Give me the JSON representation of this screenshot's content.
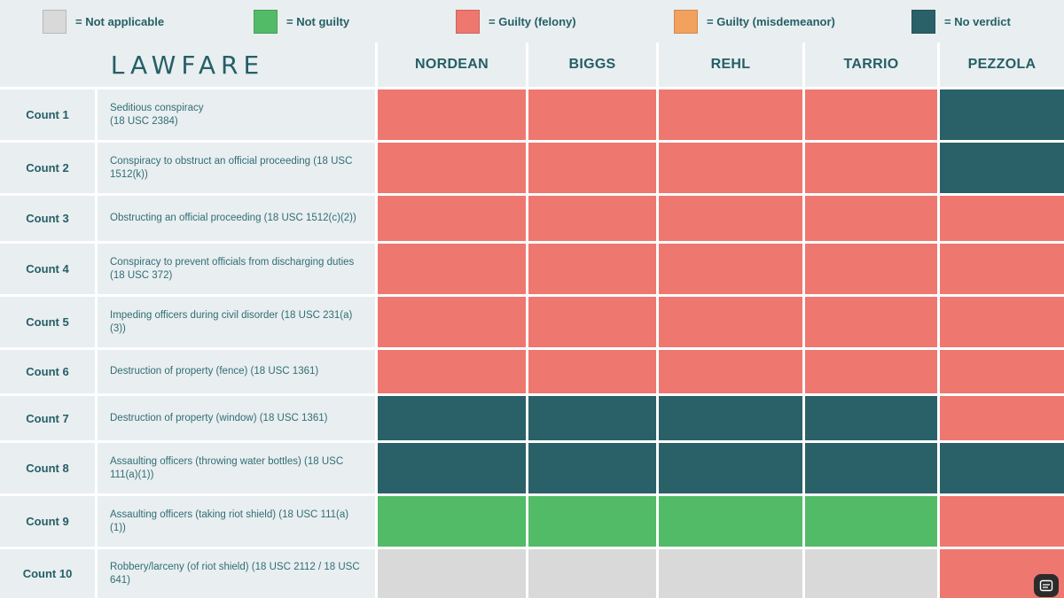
{
  "brand": "LAWFARE",
  "colors": {
    "not_applicable": "#d9d9d9",
    "not_guilty": "#52bb68",
    "guilty_felony": "#ee7770",
    "guilty_misdemeanor": "#f2a15f",
    "no_verdict": "#2a6168",
    "panel": "#e9eef0",
    "text": "#245f66"
  },
  "legend": [
    {
      "key": "not_applicable",
      "label": "= Not applicable"
    },
    {
      "key": "not_guilty",
      "label": "= Not guilty"
    },
    {
      "key": "guilty_felony",
      "label": "= Guilty (felony)"
    },
    {
      "key": "guilty_misdemeanor",
      "label": "= Guilty (misdemeanor)"
    },
    {
      "key": "no_verdict",
      "label": "= No verdict"
    }
  ],
  "chart_data": {
    "type": "table",
    "title": "LAWFARE",
    "columns": [
      "NORDEAN",
      "BIGGS",
      "REHL",
      "TARRIO",
      "PEZZOLA"
    ],
    "rows": [
      {
        "count": "Count 1",
        "charge": "Seditious conspiracy\n(18 USC 2384)",
        "verdicts": [
          "guilty_felony",
          "guilty_felony",
          "guilty_felony",
          "guilty_felony",
          "no_verdict"
        ]
      },
      {
        "count": "Count 2",
        "charge": "Conspiracy to obstruct an official proceeding (18 USC 1512(k))",
        "verdicts": [
          "guilty_felony",
          "guilty_felony",
          "guilty_felony",
          "guilty_felony",
          "no_verdict"
        ]
      },
      {
        "count": "Count 3",
        "charge": "Obstructing an official proceeding (18 USC 1512(c)(2))",
        "verdicts": [
          "guilty_felony",
          "guilty_felony",
          "guilty_felony",
          "guilty_felony",
          "guilty_felony"
        ]
      },
      {
        "count": "Count 4",
        "charge": "Conspiracy to prevent officials from discharging duties (18 USC 372)",
        "verdicts": [
          "guilty_felony",
          "guilty_felony",
          "guilty_felony",
          "guilty_felony",
          "guilty_felony"
        ]
      },
      {
        "count": "Count 5",
        "charge": "Impeding officers during civil disorder (18 USC 231(a)(3))",
        "verdicts": [
          "guilty_felony",
          "guilty_felony",
          "guilty_felony",
          "guilty_felony",
          "guilty_felony"
        ]
      },
      {
        "count": "Count 6",
        "charge": "Destruction of property (fence) (18 USC 1361)",
        "verdicts": [
          "guilty_felony",
          "guilty_felony",
          "guilty_felony",
          "guilty_felony",
          "guilty_felony"
        ]
      },
      {
        "count": "Count 7",
        "charge": "Destruction of property (window) (18 USC 1361)",
        "verdicts": [
          "no_verdict",
          "no_verdict",
          "no_verdict",
          "no_verdict",
          "guilty_felony"
        ]
      },
      {
        "count": "Count 8",
        "charge": "Assaulting officers (throwing water bottles) (18 USC 111(a)(1))",
        "verdicts": [
          "no_verdict",
          "no_verdict",
          "no_verdict",
          "no_verdict",
          "no_verdict"
        ]
      },
      {
        "count": "Count 9",
        "charge": "Assaulting officers (taking riot shield) (18 USC 111(a)(1))",
        "verdicts": [
          "not_guilty",
          "not_guilty",
          "not_guilty",
          "not_guilty",
          "guilty_felony"
        ]
      },
      {
        "count": "Count 10",
        "charge": "Robbery/larceny (of riot shield) (18 USC 2112 / 18 USC 641)",
        "verdicts": [
          "not_applicable",
          "not_applicable",
          "not_applicable",
          "not_applicable",
          "guilty_felony"
        ]
      }
    ]
  }
}
